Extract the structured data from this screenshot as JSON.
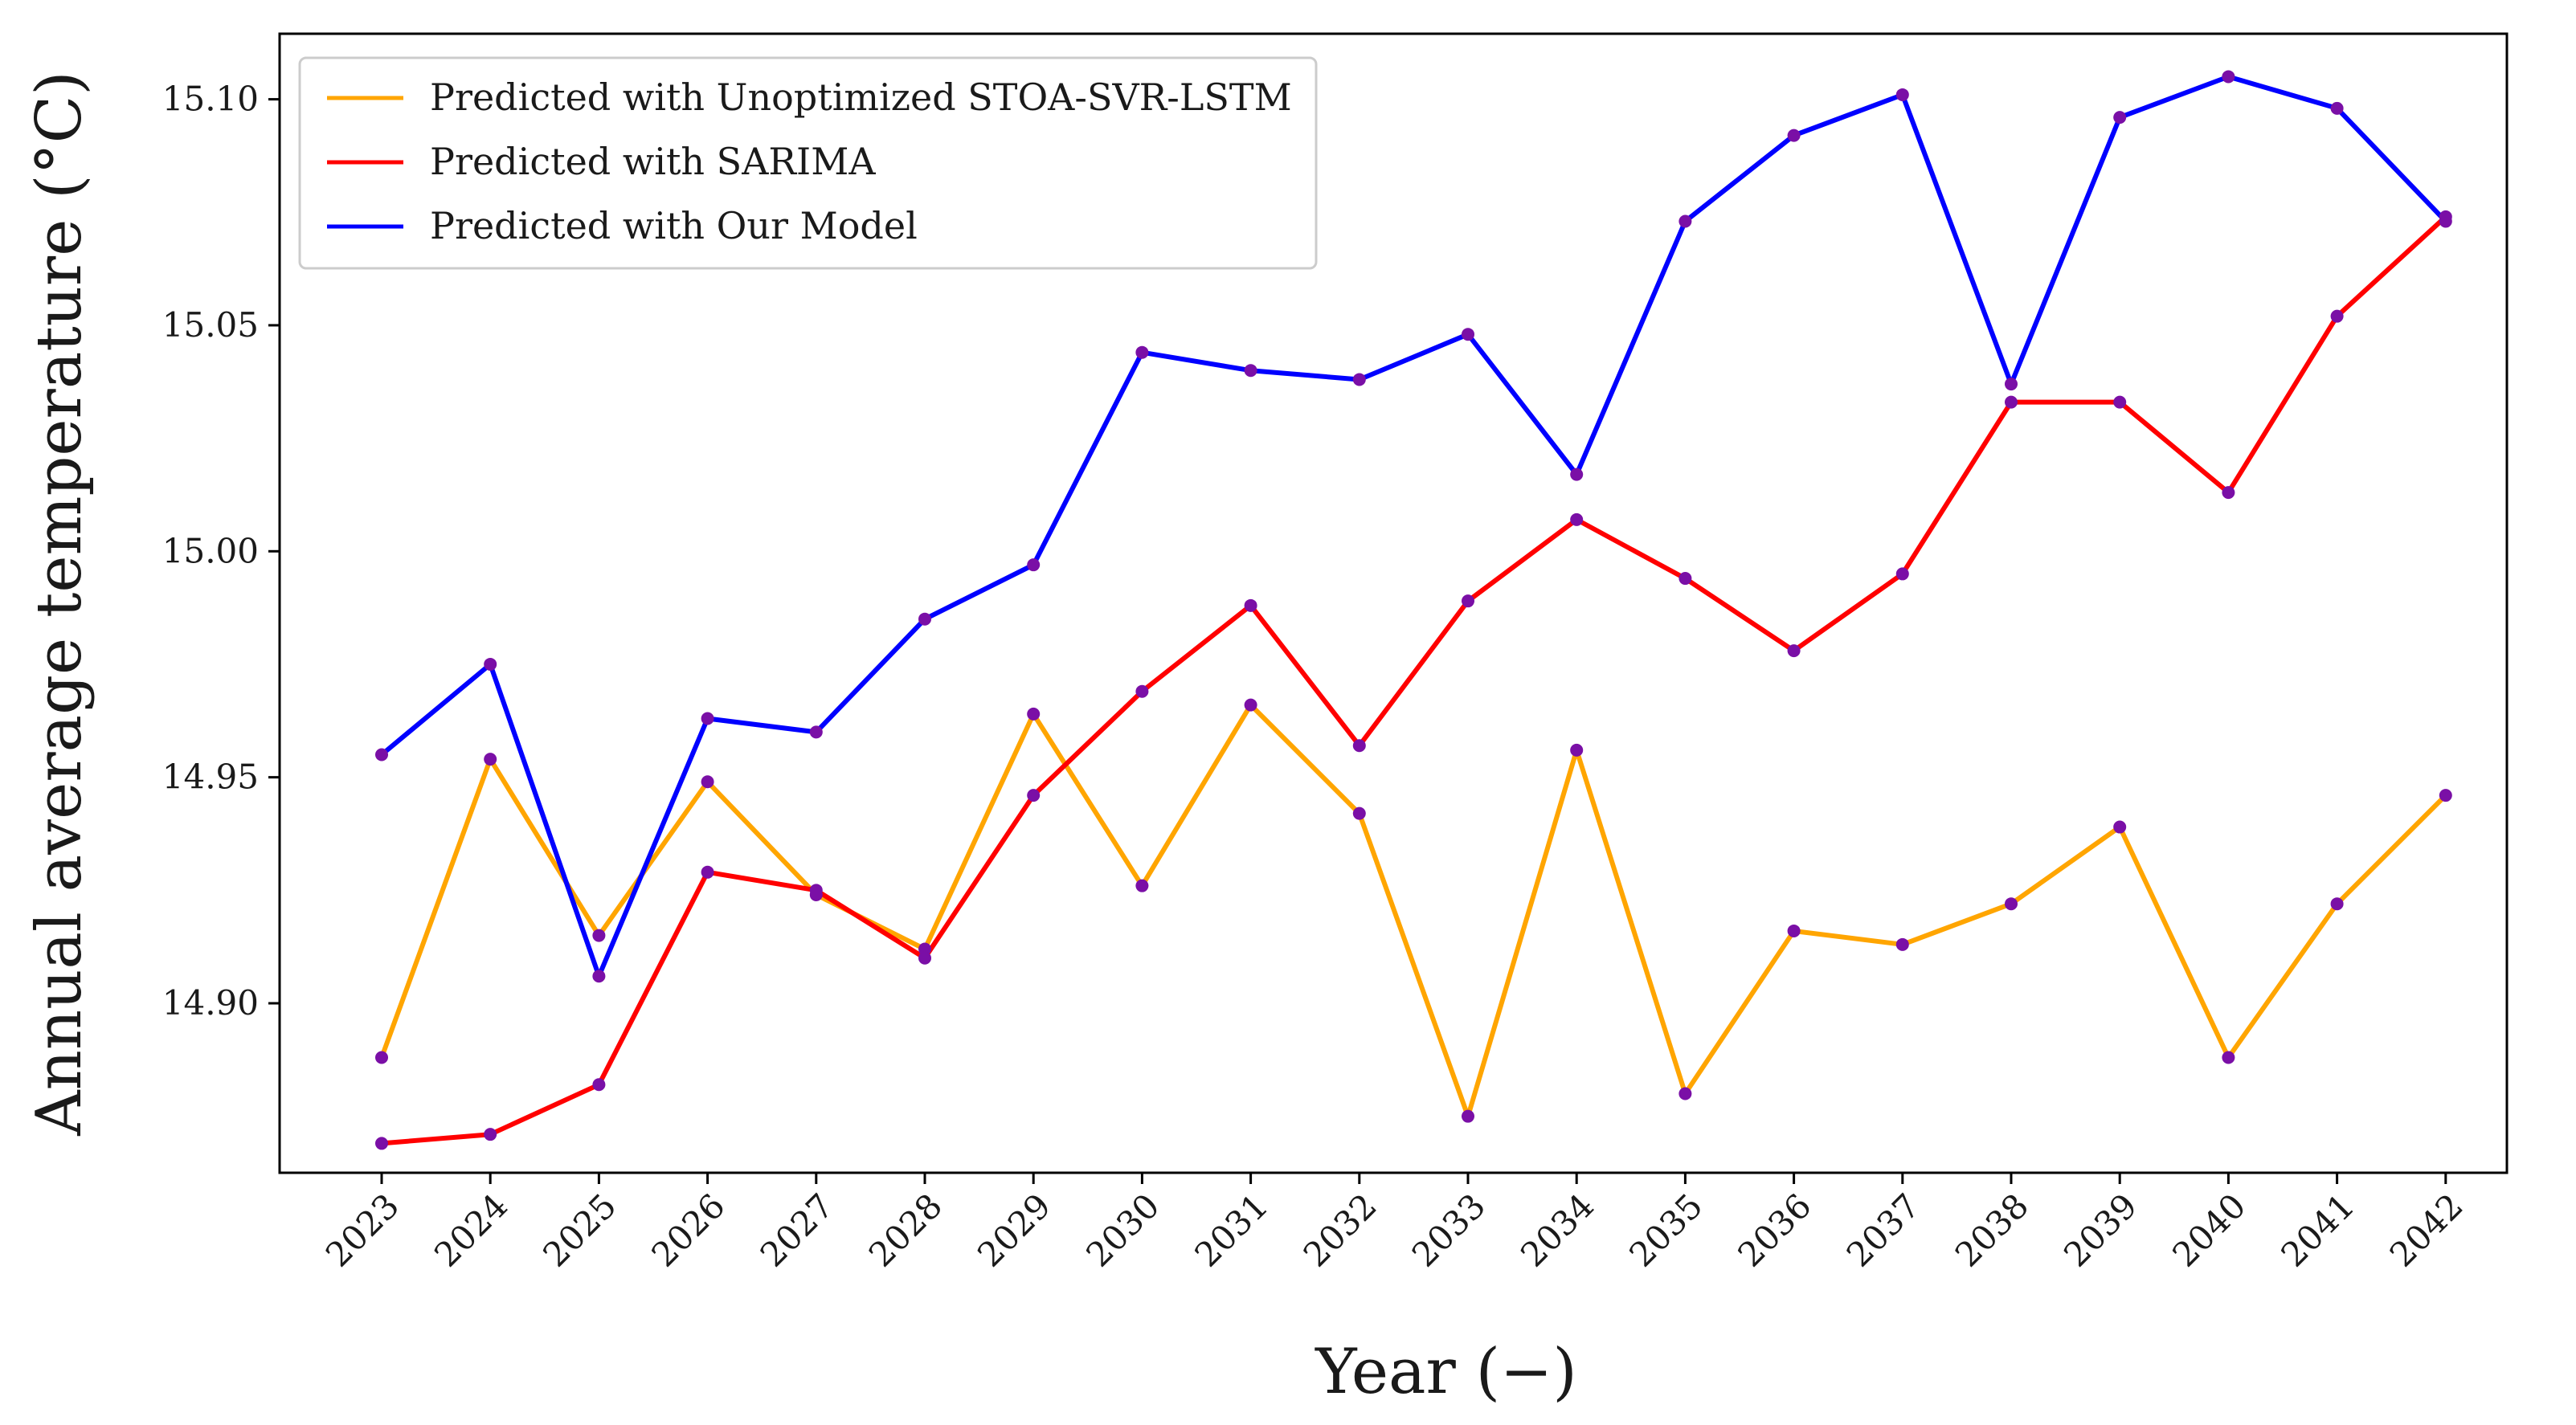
{
  "chart_data": {
    "type": "line",
    "title": "",
    "xlabel": "Year (−)",
    "ylabel": "Annual average temperature (°C)",
    "categories": [
      "2023",
      "2024",
      "2025",
      "2026",
      "2027",
      "2028",
      "2029",
      "2030",
      "2031",
      "2032",
      "2033",
      "2034",
      "2035",
      "2036",
      "2037",
      "2038",
      "2039",
      "2040",
      "2041",
      "2042"
    ],
    "yticks": [
      "14.90",
      "14.95",
      "15.00",
      "15.05",
      "15.10"
    ],
    "ylim": [
      14.8625,
      15.1145
    ],
    "grid": false,
    "legend_position": "top-left",
    "marker_color": "#7a0fa6",
    "series": [
      {
        "name": "Predicted with Unoptimized STOA-SVR-LSTM",
        "color": "#ffa500",
        "values": [
          14.888,
          14.954,
          14.915,
          14.949,
          14.924,
          14.912,
          14.964,
          14.926,
          14.966,
          14.942,
          14.875,
          14.956,
          14.88,
          14.916,
          14.913,
          14.922,
          14.939,
          14.888,
          14.922,
          14.946
        ]
      },
      {
        "name": "Predicted with SARIMA",
        "color": "#ff0000",
        "values": [
          14.869,
          14.871,
          14.882,
          14.929,
          14.925,
          14.91,
          14.946,
          14.969,
          14.988,
          14.957,
          14.989,
          15.007,
          14.994,
          14.978,
          14.995,
          15.033,
          15.033,
          15.013,
          15.052,
          15.074
        ]
      },
      {
        "name": "Predicted with Our Model",
        "color": "#0000ff",
        "values": [
          14.955,
          14.975,
          14.906,
          14.963,
          14.96,
          14.985,
          14.997,
          15.044,
          15.04,
          15.038,
          15.048,
          15.017,
          15.073,
          15.092,
          15.101,
          15.037,
          15.096,
          15.105,
          15.098,
          15.073
        ]
      }
    ]
  }
}
